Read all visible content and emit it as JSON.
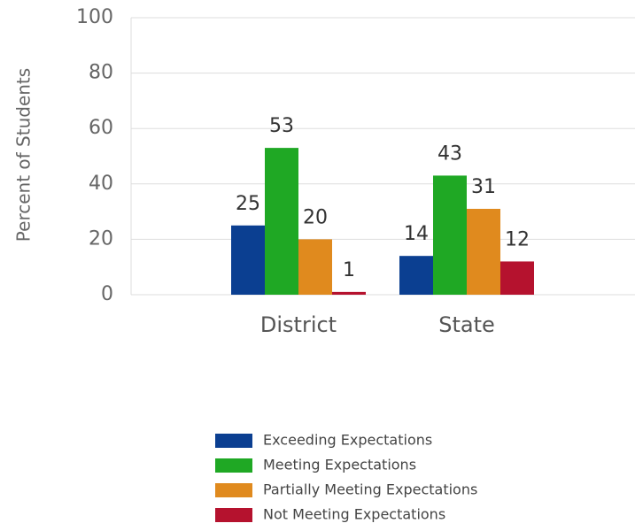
{
  "chart_data": {
    "type": "bar",
    "y_label": "Percent of Students",
    "categories": [
      "District",
      "State"
    ],
    "series": [
      {
        "name": "Exceeding Expectations",
        "color": "#0b3f91",
        "values": [
          25,
          14
        ]
      },
      {
        "name": "Meeting Expectations",
        "color": "#1fa824",
        "values": [
          53,
          43
        ]
      },
      {
        "name": "Partially Meeting Expectations",
        "color": "#e08a1e",
        "values": [
          20,
          31
        ]
      },
      {
        "name": "Not Meeting Expectations",
        "color": "#b5122e",
        "values": [
          1,
          12
        ]
      }
    ],
    "ylim": [
      0,
      100
    ],
    "yticks": [
      0,
      20,
      40,
      60,
      80,
      100
    ],
    "grid": true,
    "legend": "bottom"
  }
}
